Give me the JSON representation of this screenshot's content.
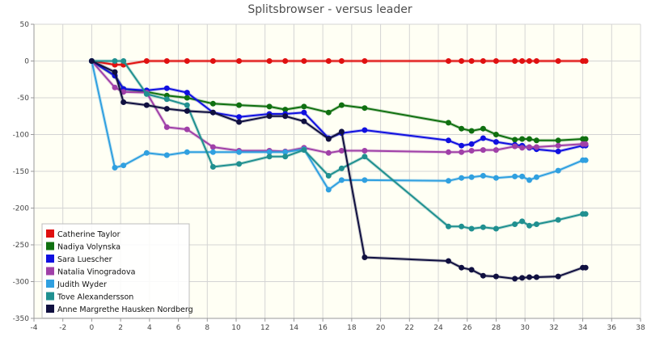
{
  "chart_data": {
    "type": "line",
    "title": "Splitsbrowser - versus leader",
    "xlabel": "",
    "ylabel": "",
    "xlim": [
      -4,
      38
    ],
    "ylim": [
      -350,
      50
    ],
    "x_ticks": [
      -4,
      -2,
      0,
      2,
      4,
      6,
      8,
      10,
      12,
      14,
      16,
      18,
      20,
      22,
      24,
      26,
      28,
      30,
      32,
      34,
      36,
      38
    ],
    "y_ticks": [
      50,
      0,
      -50,
      -100,
      -150,
      -200,
      -250,
      -300,
      -350
    ],
    "grid": true,
    "legend_position": "bottom-left",
    "colors": {
      "plot_background": "#fffff4",
      "grid": "#d4d4d4",
      "axis": "#9a9a9a"
    },
    "series": [
      {
        "name": "Catherine Taylor",
        "color": "#e01010",
        "points": [
          [
            0,
            0
          ],
          [
            1.6,
            -5
          ],
          [
            2.2,
            -5
          ],
          [
            3.8,
            0
          ],
          [
            5.2,
            0
          ],
          [
            6.6,
            0
          ],
          [
            8.4,
            0
          ],
          [
            10.2,
            0
          ],
          [
            12.3,
            0
          ],
          [
            13.4,
            0
          ],
          [
            14.7,
            0
          ],
          [
            16.4,
            0
          ],
          [
            17.3,
            0
          ],
          [
            18.9,
            0
          ],
          [
            24.7,
            0
          ],
          [
            25.6,
            0
          ],
          [
            26.3,
            0
          ],
          [
            27.1,
            0
          ],
          [
            28,
            0
          ],
          [
            29.3,
            0
          ],
          [
            29.8,
            0
          ],
          [
            30.3,
            0
          ],
          [
            30.8,
            0
          ],
          [
            32.3,
            0
          ],
          [
            34,
            0
          ],
          [
            34.2,
            0
          ]
        ]
      },
      {
        "name": "Nadiya Volynska",
        "color": "#107010",
        "points": [
          [
            0,
            0
          ],
          [
            1.6,
            -20
          ],
          [
            2.2,
            -38
          ],
          [
            3.8,
            -42
          ],
          [
            5.2,
            -47
          ],
          [
            6.6,
            -50
          ],
          [
            8.4,
            -58
          ],
          [
            10.2,
            -60
          ],
          [
            12.3,
            -62
          ],
          [
            13.4,
            -66
          ],
          [
            14.7,
            -62
          ],
          [
            16.4,
            -70
          ],
          [
            17.3,
            -60
          ],
          [
            18.9,
            -64
          ],
          [
            24.7,
            -84
          ],
          [
            25.6,
            -92
          ],
          [
            26.3,
            -95
          ],
          [
            27.1,
            -92
          ],
          [
            28,
            -100
          ],
          [
            29.3,
            -107
          ],
          [
            29.8,
            -106
          ],
          [
            30.3,
            -106
          ],
          [
            30.8,
            -108
          ],
          [
            32.3,
            -108
          ],
          [
            34,
            -106
          ],
          [
            34.2,
            -106
          ]
        ]
      },
      {
        "name": "Sara Luescher",
        "color": "#1010e0",
        "points": [
          [
            0,
            0
          ],
          [
            1.6,
            -20
          ],
          [
            2.2,
            -38
          ],
          [
            3.8,
            -40
          ],
          [
            5.2,
            -37
          ],
          [
            6.6,
            -43
          ],
          [
            8.4,
            -70
          ],
          [
            10.2,
            -76
          ],
          [
            12.3,
            -72
          ],
          [
            13.4,
            -72
          ],
          [
            14.7,
            -70
          ],
          [
            16.4,
            -105
          ],
          [
            17.3,
            -98
          ],
          [
            18.9,
            -94
          ],
          [
            24.7,
            -108
          ],
          [
            25.6,
            -115
          ],
          [
            26.3,
            -113
          ],
          [
            27.1,
            -105
          ],
          [
            28,
            -110
          ],
          [
            29.3,
            -114
          ],
          [
            29.8,
            -115
          ],
          [
            30.3,
            -118
          ],
          [
            30.8,
            -120
          ],
          [
            32.3,
            -123
          ],
          [
            34,
            -115
          ],
          [
            34.2,
            -115
          ]
        ]
      },
      {
        "name": "Natalia Vinogradova",
        "color": "#a040a8",
        "points": [
          [
            0,
            0
          ],
          [
            1.6,
            -36
          ],
          [
            2.2,
            -42
          ],
          [
            3.8,
            -43
          ],
          [
            5.2,
            -90
          ],
          [
            6.6,
            -93
          ],
          [
            8.4,
            -117
          ],
          [
            10.2,
            -122
          ],
          [
            12.3,
            -122
          ],
          [
            13.4,
            -123
          ],
          [
            14.7,
            -118
          ],
          [
            16.4,
            -125
          ],
          [
            17.3,
            -122
          ],
          [
            18.9,
            -122
          ],
          [
            24.7,
            -124
          ],
          [
            25.6,
            -124
          ],
          [
            26.3,
            -122
          ],
          [
            27.1,
            -121
          ],
          [
            28,
            -121
          ],
          [
            29.3,
            -116
          ],
          [
            29.8,
            -118
          ],
          [
            30.3,
            -117
          ],
          [
            30.8,
            -117
          ],
          [
            32.3,
            -115
          ],
          [
            34,
            -113
          ],
          [
            34.2,
            -113
          ]
        ]
      },
      {
        "name": "Judith Wyder",
        "color": "#30a0e0",
        "points": [
          [
            0,
            0
          ],
          [
            1.6,
            -145
          ],
          [
            2.2,
            -142
          ],
          [
            3.8,
            -125
          ],
          [
            5.2,
            -128
          ],
          [
            6.6,
            -124
          ],
          [
            8.4,
            -124
          ],
          [
            10.2,
            -124
          ],
          [
            12.3,
            -124
          ],
          [
            13.4,
            -124
          ],
          [
            14.7,
            -120
          ],
          [
            16.4,
            -175
          ],
          [
            17.3,
            -162
          ],
          [
            18.9,
            -162
          ],
          [
            24.7,
            -163
          ],
          [
            25.6,
            -159
          ],
          [
            26.3,
            -158
          ],
          [
            27.1,
            -156
          ],
          [
            28,
            -159
          ],
          [
            29.3,
            -157
          ],
          [
            29.8,
            -157
          ],
          [
            30.3,
            -162
          ],
          [
            30.8,
            -158
          ],
          [
            32.3,
            -149
          ],
          [
            34,
            -135
          ],
          [
            34.2,
            -135
          ]
        ]
      },
      {
        "name": "Tove Alexandersson",
        "color": "#209090",
        "points": [
          [
            0,
            0
          ],
          [
            1.6,
            0
          ],
          [
            2.2,
            0
          ],
          [
            3.8,
            -45
          ],
          [
            5.2,
            -52
          ],
          [
            6.6,
            -60
          ],
          [
            8.4,
            -144
          ],
          [
            10.2,
            -140
          ],
          [
            12.3,
            -130
          ],
          [
            13.4,
            -130
          ],
          [
            14.7,
            -121
          ],
          [
            16.4,
            -156
          ],
          [
            17.3,
            -146
          ],
          [
            18.9,
            -130
          ],
          [
            24.7,
            -225
          ],
          [
            25.6,
            -225
          ],
          [
            26.3,
            -228
          ],
          [
            27.1,
            -226
          ],
          [
            28,
            -228
          ],
          [
            29.3,
            -222
          ],
          [
            29.8,
            -218
          ],
          [
            30.3,
            -224
          ],
          [
            30.8,
            -222
          ],
          [
            32.3,
            -216
          ],
          [
            34,
            -208
          ],
          [
            34.2,
            -208
          ]
        ]
      },
      {
        "name": "Anne Margrethe Hausken Nordberg",
        "color": "#101040",
        "points": [
          [
            0,
            0
          ],
          [
            1.6,
            -15
          ],
          [
            2.2,
            -56
          ],
          [
            3.8,
            -60
          ],
          [
            5.2,
            -65
          ],
          [
            6.6,
            -68
          ],
          [
            8.4,
            -70
          ],
          [
            10.2,
            -83
          ],
          [
            12.3,
            -75
          ],
          [
            13.4,
            -75
          ],
          [
            14.7,
            -82
          ],
          [
            16.4,
            -106
          ],
          [
            17.3,
            -96
          ],
          [
            18.9,
            -267
          ],
          [
            24.7,
            -272
          ],
          [
            25.6,
            -281
          ],
          [
            26.3,
            -284
          ],
          [
            27.1,
            -292
          ],
          [
            28,
            -293
          ],
          [
            29.3,
            -296
          ],
          [
            29.8,
            -295
          ],
          [
            30.3,
            -294
          ],
          [
            30.8,
            -294
          ],
          [
            32.3,
            -293
          ],
          [
            34,
            -281
          ],
          [
            34.2,
            -281
          ]
        ]
      }
    ]
  }
}
